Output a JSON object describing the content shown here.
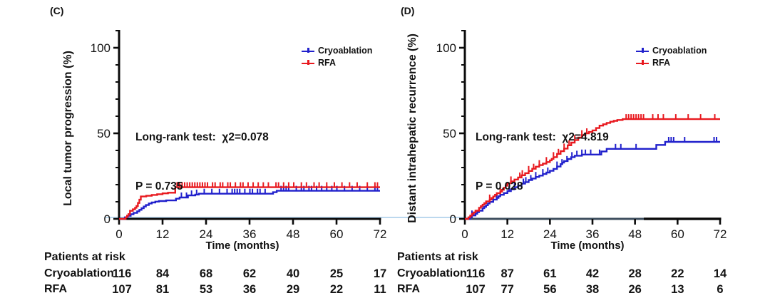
{
  "figure": {
    "background": "#ffffff",
    "axis_color": "#0b0b0b",
    "baseline_artifact_color": "#a6cce8",
    "axis_d_slate_color": "#3e4e5e"
  },
  "panels": [
    {
      "label": "(C)"
    },
    {
      "label": "(D)"
    }
  ],
  "chart_data": [
    {
      "panel": "C",
      "type": "line",
      "subtype": "kaplan-meier-cumulative-incidence-step",
      "ylabel": "Local tumor progression (%)",
      "xlabel": "Time (months)",
      "xlim": [
        0,
        72
      ],
      "ylim": [
        0,
        100
      ],
      "xticks": [
        0,
        12,
        24,
        36,
        48,
        60,
        72
      ],
      "yticks": [
        0,
        50,
        100
      ],
      "minor_ytick_step": 10,
      "grid": false,
      "legend_position": "upper right",
      "annotation": {
        "line1": "Long-rank test:  χ2=0.078",
        "line2": "P = 0.735"
      },
      "series": [
        {
          "name": "Cryoablation",
          "color": "#2121cc",
          "points": [
            [
              0,
              0
            ],
            [
              1.6,
              0.9
            ],
            [
              2.4,
              1.8
            ],
            [
              3.2,
              2.7
            ],
            [
              4,
              3.5
            ],
            [
              5,
              4.4
            ],
            [
              5.6,
              5.3
            ],
            [
              6.2,
              6.2
            ],
            [
              6.8,
              7.2
            ],
            [
              7.4,
              8.1
            ],
            [
              8.2,
              9
            ],
            [
              9,
              9.6
            ],
            [
              10,
              10.1
            ],
            [
              11,
              10.4
            ],
            [
              13,
              10.8
            ],
            [
              15.7,
              11.8
            ],
            [
              16.7,
              12.5
            ],
            [
              19,
              13.7
            ],
            [
              21,
              14.2
            ],
            [
              22,
              14.7
            ],
            [
              42.5,
              15.6
            ],
            [
              43.5,
              16.4
            ],
            [
              72,
              16.4
            ]
          ],
          "censor_times": [
            17.2,
            18.6,
            20,
            21.4,
            23.5,
            25.6,
            27.7,
            29.8,
            31.2,
            31.9,
            32.6,
            33.3,
            34.7,
            36.1,
            36.8,
            38.2,
            38.9,
            40.3,
            44.7,
            45.4,
            46.1,
            46.8,
            48.9,
            50.3,
            51,
            52.4,
            53.1,
            54.5,
            55.9,
            57.3,
            58.7,
            60.1,
            62.2,
            64.3,
            66.4,
            68.5,
            70.6,
            71.3
          ]
        },
        {
          "name": "RFA",
          "color": "#e8191f",
          "points": [
            [
              0,
              0
            ],
            [
              1.8,
              0.9
            ],
            [
              2.2,
              1.9
            ],
            [
              2.6,
              2.8
            ],
            [
              3,
              4.7
            ],
            [
              3.8,
              5.6
            ],
            [
              4.4,
              6.5
            ],
            [
              4.8,
              7.5
            ],
            [
              5.2,
              9.3
            ],
            [
              5.6,
              11.2
            ],
            [
              6,
              13.1
            ],
            [
              7.5,
              13.5
            ],
            [
              9,
              14
            ],
            [
              10.5,
              14.4
            ],
            [
              12,
              14.9
            ],
            [
              13.5,
              15.3
            ],
            [
              15.5,
              18.5
            ],
            [
              72,
              18.5
            ]
          ],
          "censor_times": [
            16,
            16.7,
            17.4,
            18.1,
            18.8,
            19.5,
            20.2,
            20.9,
            21.6,
            22.3,
            23,
            23.7,
            24.4,
            25.8,
            26.5,
            27.9,
            28.6,
            30,
            30.7,
            32.1,
            33.5,
            34.2,
            35.6,
            37,
            38.4,
            39.8,
            41.2,
            43.3,
            44,
            45.4,
            46.8,
            48.2,
            50.3,
            51.7,
            53.8,
            55.2,
            57.3,
            59.4,
            61.5,
            63.6,
            65.7,
            68.5,
            70.6,
            71.3
          ]
        }
      ],
      "patients_at_risk": {
        "title": "Patients at risk",
        "rows": [
          {
            "label": "Cryoablation",
            "counts": [
              116,
              84,
              68,
              62,
              40,
              25,
              17
            ]
          },
          {
            "label": "RFA",
            "counts": [
              107,
              81,
              53,
              36,
              29,
              22,
              11
            ]
          }
        ]
      }
    },
    {
      "panel": "D",
      "type": "line",
      "subtype": "kaplan-meier-cumulative-incidence-step",
      "ylabel": "Distant intrahepatic recurrence (%)",
      "xlabel": "Time (months)",
      "xlim": [
        0,
        72
      ],
      "ylim": [
        0,
        100
      ],
      "xticks": [
        0,
        12,
        24,
        36,
        48,
        60,
        72
      ],
      "yticks": [
        0,
        50,
        100
      ],
      "minor_ytick_step": 10,
      "grid": false,
      "legend_position": "upper right",
      "annotation": {
        "line1": "Long-rank test:  χ2=4.819",
        "line2": "P = 0.028"
      },
      "series": [
        {
          "name": "Cryoablation",
          "color": "#2121cc",
          "points": [
            [
              0,
              0
            ],
            [
              1.5,
              1
            ],
            [
              2,
              2
            ],
            [
              3,
              3
            ],
            [
              3.5,
              3.9
            ],
            [
              4,
              4.8
            ],
            [
              5,
              6.2
            ],
            [
              5.5,
              7.1
            ],
            [
              6,
              8
            ],
            [
              6.5,
              9
            ],
            [
              7,
              9.9
            ],
            [
              8,
              11.3
            ],
            [
              9,
              12.3
            ],
            [
              9.5,
              13.2
            ],
            [
              10,
              14.1
            ],
            [
              11,
              15.1
            ],
            [
              12,
              16.2
            ],
            [
              13,
              17.3
            ],
            [
              14,
              18.5
            ],
            [
              15,
              19.4
            ],
            [
              16,
              20.6
            ],
            [
              17,
              21.5
            ],
            [
              18,
              22.7
            ],
            [
              19,
              23.6
            ],
            [
              20,
              24.5
            ],
            [
              21,
              25.3
            ],
            [
              22,
              26.2
            ],
            [
              23,
              27.1
            ],
            [
              24,
              28.1
            ],
            [
              25,
              29.2
            ],
            [
              26,
              30.6
            ],
            [
              27,
              32
            ],
            [
              27.5,
              32.9
            ],
            [
              28,
              33.8
            ],
            [
              29,
              35
            ],
            [
              30,
              36.1
            ],
            [
              31,
              36.9
            ],
            [
              33,
              37.6
            ],
            [
              38.5,
              39.4
            ],
            [
              40,
              40.9
            ],
            [
              54,
              43.2
            ],
            [
              56.5,
              45
            ],
            [
              72,
              45
            ]
          ],
          "censor_times": [
            2,
            9,
            12.5,
            14,
            16.5,
            17.2,
            18.6,
            20,
            22,
            23.4,
            26,
            27.4,
            28.8,
            30.2,
            31.6,
            33,
            34,
            35.5,
            38,
            42.5,
            44,
            48.3,
            57.5,
            58.2,
            58.9,
            62,
            70.3,
            71
          ]
        },
        {
          "name": "RFA",
          "color": "#e8191f",
          "points": [
            [
              0,
              0
            ],
            [
              1,
              0.9
            ],
            [
              1.5,
              1.9
            ],
            [
              2,
              2.9
            ],
            [
              2.5,
              3.8
            ],
            [
              3,
              4.8
            ],
            [
              4,
              6.5
            ],
            [
              4.5,
              7.4
            ],
            [
              5,
              8.3
            ],
            [
              5.5,
              9.2
            ],
            [
              6,
              10.2
            ],
            [
              7,
              11.3
            ],
            [
              7.5,
              12.2
            ],
            [
              8,
              13.1
            ],
            [
              8.5,
              14.1
            ],
            [
              9,
              15
            ],
            [
              10,
              15.9
            ],
            [
              10.5,
              17
            ],
            [
              11,
              18.2
            ],
            [
              11.5,
              19.4
            ],
            [
              12,
              20.8
            ],
            [
              13,
              21.9
            ],
            [
              14,
              23
            ],
            [
              15,
              24.2
            ],
            [
              16,
              25.5
            ],
            [
              17,
              26.7
            ],
            [
              18,
              28
            ],
            [
              19,
              29.3
            ],
            [
              20,
              30.5
            ],
            [
              21,
              31.4
            ],
            [
              22,
              32.3
            ],
            [
              23,
              33.2
            ],
            [
              24,
              34.2
            ],
            [
              24.5,
              35.1
            ],
            [
              25,
              36.1
            ],
            [
              26,
              38
            ],
            [
              27,
              39.6
            ],
            [
              28,
              41.1
            ],
            [
              29,
              43
            ],
            [
              30,
              44.6
            ],
            [
              31,
              46.1
            ],
            [
              32,
              47.5
            ],
            [
              33,
              48.9
            ],
            [
              34,
              50
            ],
            [
              35,
              50.8
            ],
            [
              36,
              51.7
            ],
            [
              37,
              53.1
            ],
            [
              38,
              54.5
            ],
            [
              39,
              55.3
            ],
            [
              40,
              56.1
            ],
            [
              41,
              56.8
            ],
            [
              42,
              57.3
            ],
            [
              43,
              57.8
            ],
            [
              44.5,
              58.3
            ],
            [
              72,
              58.3
            ]
          ],
          "censor_times": [
            7,
            10,
            13,
            15.5,
            16.2,
            18,
            19.4,
            21,
            23,
            25,
            26.4,
            28,
            29.4,
            31,
            33,
            34.4,
            45.5,
            46.2,
            46.9,
            47.6,
            48.3,
            49,
            49.7,
            50.4,
            53,
            54.5,
            56,
            59.5,
            63,
            66.5,
            70.5
          ]
        }
      ],
      "patients_at_risk": {
        "title": "Patients at risk",
        "rows": [
          {
            "label": "Cryoablation",
            "counts": [
              116,
              87,
              61,
              42,
              28,
              22,
              14
            ]
          },
          {
            "label": "RFA",
            "counts": [
              107,
              77,
              56,
              38,
              26,
              13,
              6
            ]
          }
        ]
      }
    }
  ]
}
